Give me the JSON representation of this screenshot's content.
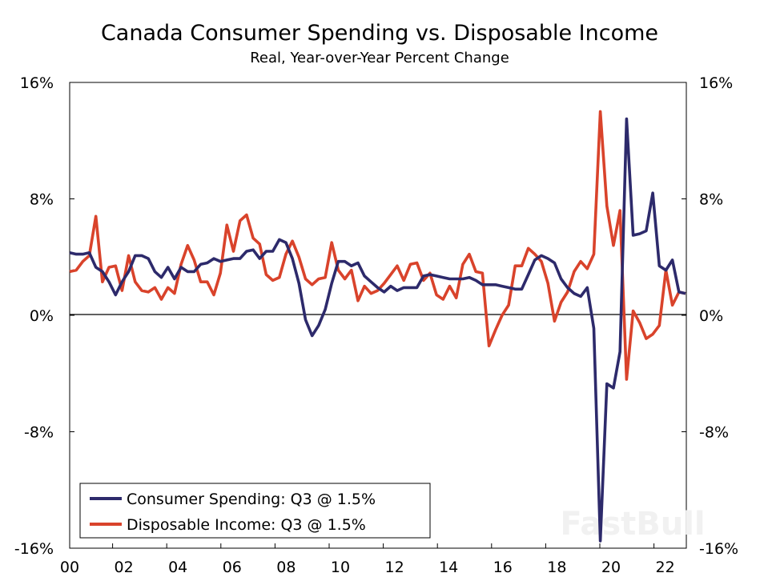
{
  "chart_data": {
    "type": "line",
    "title": "Canada Consumer Spending vs. Disposable Income",
    "subtitle": "Real, Year-over-Year Percent Change",
    "xlabel": "",
    "ylabel": "",
    "x_start": "2000Q1",
    "x_end": "2023Q3",
    "frequency": "quarterly",
    "x_tick_labels": [
      "00",
      "02",
      "04",
      "06",
      "08",
      "10",
      "12",
      "14",
      "16",
      "18",
      "20",
      "22"
    ],
    "y_ticks": [
      16,
      8,
      0,
      -8,
      -16
    ],
    "y_tick_labels": [
      "16%",
      "8%",
      "0%",
      "-8%",
      "-16%"
    ],
    "ylim": [
      -16,
      16
    ],
    "grid": false,
    "legend_position": "bottom-left",
    "series": [
      {
        "name": "Consumer Spending: Q3 @ 1.5%",
        "color": "#2d2a6b",
        "values": [
          4.3,
          4.2,
          4.2,
          4.3,
          3.3,
          3.0,
          2.3,
          1.4,
          2.3,
          3.0,
          4.1,
          4.1,
          3.9,
          3.0,
          2.6,
          3.3,
          2.5,
          3.3,
          3.0,
          3.0,
          3.5,
          3.6,
          3.9,
          3.7,
          3.8,
          3.9,
          3.9,
          4.4,
          4.5,
          3.9,
          4.4,
          4.4,
          5.2,
          5.0,
          3.9,
          2.2,
          -0.3,
          -1.4,
          -0.7,
          0.4,
          2.2,
          3.7,
          3.7,
          3.4,
          3.6,
          2.7,
          2.3,
          1.9,
          1.6,
          2.0,
          1.7,
          1.9,
          1.9,
          1.9,
          2.7,
          2.8,
          2.7,
          2.6,
          2.5,
          2.5,
          2.5,
          2.6,
          2.4,
          2.1,
          2.1,
          2.1,
          2.0,
          1.9,
          1.8,
          1.8,
          2.8,
          3.8,
          4.1,
          3.9,
          3.6,
          2.5,
          1.9,
          1.5,
          1.3,
          1.9,
          -0.9,
          -15.5,
          -4.7,
          -5.0,
          -2.5,
          13.5,
          5.5,
          5.6,
          5.8,
          8.4,
          3.4,
          3.1,
          3.8,
          1.6,
          1.5
        ]
      },
      {
        "name": "Disposable Income: Q3 @ 1.5%",
        "color": "#d9432b",
        "values": [
          3.0,
          3.1,
          3.7,
          4.1,
          6.8,
          2.3,
          3.3,
          3.4,
          1.7,
          4.1,
          2.3,
          1.7,
          1.6,
          1.9,
          1.1,
          1.9,
          1.5,
          3.5,
          4.8,
          3.8,
          2.3,
          2.3,
          1.4,
          2.9,
          6.2,
          4.4,
          6.5,
          6.9,
          5.3,
          4.9,
          2.8,
          2.4,
          2.6,
          4.2,
          5.1,
          4.0,
          2.5,
          2.1,
          2.5,
          2.6,
          5.0,
          3.1,
          2.5,
          3.1,
          1.0,
          2.0,
          1.5,
          1.7,
          2.2,
          2.8,
          3.4,
          2.4,
          3.5,
          3.6,
          2.4,
          2.9,
          1.4,
          1.1,
          2.0,
          1.2,
          3.5,
          4.2,
          3.0,
          2.9,
          -2.1,
          -1.0,
          0.0,
          0.7,
          3.4,
          3.4,
          4.6,
          4.2,
          3.7,
          2.2,
          -0.4,
          0.9,
          1.6,
          3.0,
          3.7,
          3.2,
          4.2,
          14.0,
          7.5,
          4.8,
          7.2,
          -4.4,
          0.3,
          -0.5,
          -1.6,
          -1.3,
          -0.7,
          3.1,
          0.7,
          1.6,
          1.5
        ]
      }
    ]
  },
  "watermark": "FastBull"
}
